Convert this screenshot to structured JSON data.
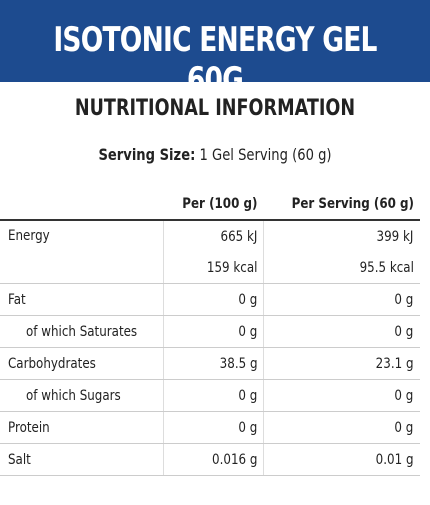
{
  "header": {
    "title": "ISOTONIC ENERGY GEL 60G"
  },
  "section_title": "NUTRITIONAL INFORMATION",
  "serving": {
    "label": "Serving Size:",
    "value": "1 Gel Serving (60 g)"
  },
  "table": {
    "columns": [
      "Per (100 g)",
      "Per Serving (60 g)"
    ],
    "energy": {
      "label": "Energy",
      "per100": [
        "665 kJ",
        "159 kcal"
      ],
      "perServing": [
        "399 kJ",
        "95.5 kcal"
      ]
    },
    "rows": [
      [
        "Fat",
        "0 g",
        "0 g"
      ],
      [
        "of which Saturates",
        "0 g",
        "0 g"
      ],
      [
        "Carbohydrates",
        "38.5 g",
        "23.1 g"
      ],
      [
        "of which Sugars",
        "0 g",
        "0 g"
      ],
      [
        "Protein",
        "0 g",
        "0 g"
      ],
      [
        "Salt",
        "0.016 g",
        "0.01 g"
      ]
    ]
  }
}
